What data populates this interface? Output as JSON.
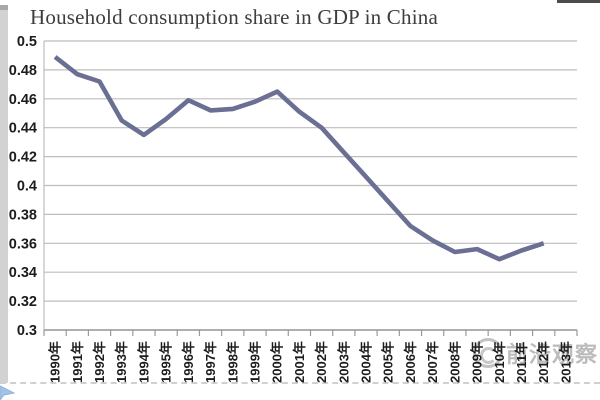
{
  "page": {
    "title": "Household consumption share in GDP in China"
  },
  "watermark": {
    "text": "前沿观察",
    "logo": "circle-swirl-logo"
  },
  "chart_data": {
    "type": "line",
    "title": "Household consumption share in GDP in China",
    "categories": [
      "1990年",
      "1991年",
      "1992年",
      "1993年",
      "1994年",
      "1995年",
      "1996年",
      "1997年",
      "1998年",
      "1999年",
      "2000年",
      "2001年",
      "2002年",
      "2003年",
      "2004年",
      "2005年",
      "2006年",
      "2007年",
      "2008年",
      "2009年",
      "2010年",
      "2011年",
      "2012年",
      "2013年"
    ],
    "values": [
      0.489,
      0.477,
      0.472,
      0.445,
      0.435,
      0.446,
      0.459,
      0.452,
      0.453,
      0.458,
      0.465,
      0.451,
      0.44,
      0.423,
      0.406,
      0.389,
      0.372,
      0.362,
      0.354,
      0.356,
      0.349,
      0.355,
      0.36
    ],
    "values_note": "series has 23 points (1990-2012); 2013 category is labeled but has no data point",
    "xlabel": "",
    "ylabel": "",
    "ylim": [
      0.3,
      0.5
    ],
    "ytick_labels": [
      "0.5",
      "0.48",
      "0.46",
      "0.44",
      "0.42",
      "0.4",
      "0.38",
      "0.36",
      "0.34",
      "0.32",
      "0.3"
    ],
    "yticks": [
      0.5,
      0.48,
      0.46,
      0.44,
      0.42,
      0.4,
      0.38,
      0.36,
      0.34,
      0.32,
      0.3
    ],
    "grid": true,
    "legend": "none",
    "line_color": "#6a6f93",
    "grid_color": "#bdbdbd",
    "axis_color": "#9a9a9a",
    "x_labels_rotated_degrees": -90
  }
}
